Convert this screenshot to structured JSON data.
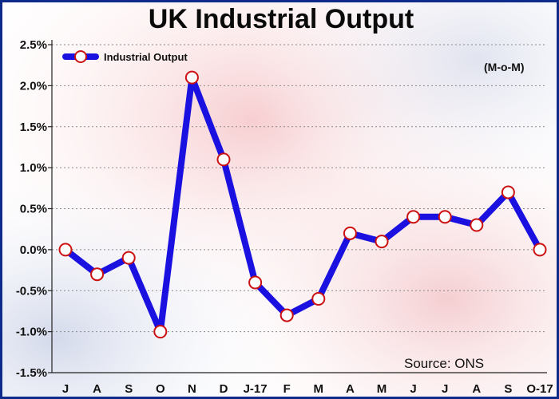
{
  "colors": {
    "line": "#1a10e0",
    "marker_fill": "#ffffff",
    "marker_stroke": "#cc1111",
    "frame": "#0e2a8a",
    "background_tint": "#f3d6d8"
  },
  "chart_data": {
    "type": "line",
    "title": "UK Industrial Output",
    "note": "(M-o-M)",
    "source": "Source: ONS",
    "categories": [
      "J",
      "A",
      "S",
      "O",
      "N",
      "D",
      "J-17",
      "F",
      "M",
      "A",
      "M",
      "J",
      "J",
      "A",
      "S",
      "O-17"
    ],
    "series": [
      {
        "name": "Industrial Output",
        "values": [
          0.0,
          -0.3,
          -0.1,
          -1.0,
          2.1,
          1.1,
          -0.4,
          -0.8,
          -0.6,
          0.2,
          0.1,
          0.4,
          0.4,
          0.3,
          0.7,
          0.0
        ]
      }
    ],
    "ylim": [
      -1.5,
      2.5
    ],
    "yticks": [
      2.5,
      2.0,
      1.5,
      1.0,
      0.5,
      0.0,
      -0.5,
      -1.0,
      -1.5
    ],
    "ytick_labels": [
      "2.5%",
      "2.0%",
      "1.5%",
      "1.0%",
      "0.5%",
      "0.0%",
      "-0.5%",
      "-1.0%",
      "-1.5%"
    ],
    "grid": "horizontal dotted",
    "legend_position": "top-left"
  }
}
